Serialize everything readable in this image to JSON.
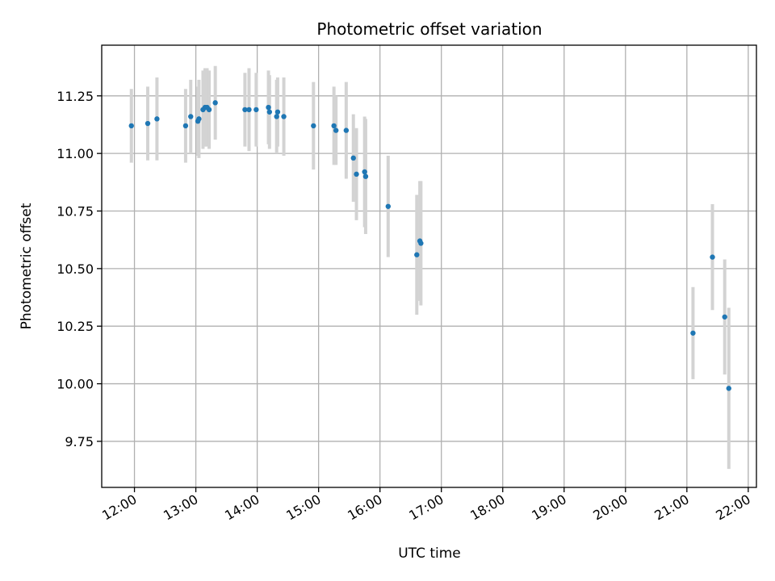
{
  "chart_data": {
    "type": "scatter",
    "title": "Photometric offset variation",
    "xlabel": "UTC time",
    "ylabel": "Photometric offset",
    "x_axis_type": "time",
    "xlim": [
      "11:28",
      "22:08"
    ],
    "ylim": [
      9.55,
      11.47
    ],
    "grid": true,
    "x_ticks": [
      "12:00",
      "13:00",
      "14:00",
      "15:00",
      "16:00",
      "17:00",
      "18:00",
      "19:00",
      "20:00",
      "21:00",
      "22:00"
    ],
    "y_ticks": [
      "9.75",
      "10.00",
      "10.25",
      "10.50",
      "10.75",
      "11.00",
      "11.25"
    ],
    "marker_color": "#1f77b4",
    "errorbar_color": "#d3d3d3",
    "points": [
      {
        "x": "11:57",
        "y": 11.12,
        "err": 0.16
      },
      {
        "x": "12:13",
        "y": 11.13,
        "err": 0.16
      },
      {
        "x": "12:22",
        "y": 11.15,
        "err": 0.18
      },
      {
        "x": "12:50",
        "y": 11.12,
        "err": 0.16
      },
      {
        "x": "12:55",
        "y": 11.16,
        "err": 0.16
      },
      {
        "x": "13:02",
        "y": 11.14,
        "err": 0.15
      },
      {
        "x": "13:03",
        "y": 11.15,
        "err": 0.17
      },
      {
        "x": "13:07",
        "y": 11.19,
        "err": 0.17
      },
      {
        "x": "13:09",
        "y": 11.2,
        "err": 0.17
      },
      {
        "x": "13:11",
        "y": 11.2,
        "err": 0.17
      },
      {
        "x": "13:13",
        "y": 11.19,
        "err": 0.17
      },
      {
        "x": "13:19",
        "y": 11.22,
        "err": 0.16
      },
      {
        "x": "13:48",
        "y": 11.19,
        "err": 0.16
      },
      {
        "x": "13:52",
        "y": 11.19,
        "err": 0.18
      },
      {
        "x": "13:59",
        "y": 11.19,
        "err": 0.16
      },
      {
        "x": "14:11",
        "y": 11.2,
        "err": 0.16
      },
      {
        "x": "14:12",
        "y": 11.18,
        "err": 0.16
      },
      {
        "x": "14:19",
        "y": 11.16,
        "err": 0.16
      },
      {
        "x": "14:20",
        "y": 11.18,
        "err": 0.15
      },
      {
        "x": "14:26",
        "y": 11.16,
        "err": 0.17
      },
      {
        "x": "14:55",
        "y": 11.12,
        "err": 0.19
      },
      {
        "x": "15:15",
        "y": 11.12,
        "err": 0.17
      },
      {
        "x": "15:17",
        "y": 11.1,
        "err": 0.15
      },
      {
        "x": "15:27",
        "y": 11.1,
        "err": 0.21
      },
      {
        "x": "15:34",
        "y": 10.98,
        "err": 0.19
      },
      {
        "x": "15:37",
        "y": 10.91,
        "err": 0.2
      },
      {
        "x": "15:45",
        "y": 10.92,
        "err": 0.24
      },
      {
        "x": "15:46",
        "y": 10.9,
        "err": 0.25
      },
      {
        "x": "16:08",
        "y": 10.77,
        "err": 0.22
      },
      {
        "x": "16:36",
        "y": 10.56,
        "err": 0.26
      },
      {
        "x": "16:39",
        "y": 10.62,
        "err": 0.26
      },
      {
        "x": "16:40",
        "y": 10.61,
        "err": 0.27
      },
      {
        "x": "21:06",
        "y": 10.22,
        "err": 0.2
      },
      {
        "x": "21:25",
        "y": 10.55,
        "err": 0.23
      },
      {
        "x": "21:37",
        "y": 10.29,
        "err": 0.25
      },
      {
        "x": "21:41",
        "y": 9.98,
        "err": 0.35
      }
    ]
  }
}
